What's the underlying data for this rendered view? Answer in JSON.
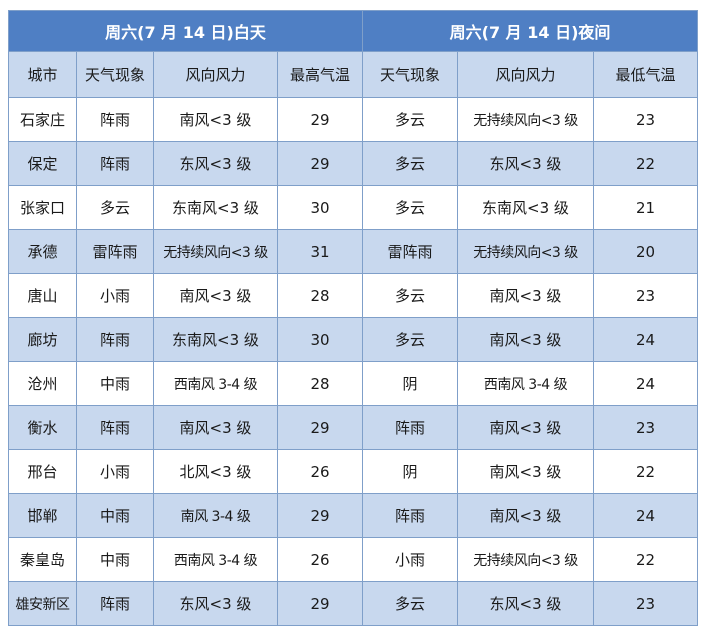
{
  "table": {
    "day_title": "周六(7 月 14 日)白天",
    "night_title": "周六(7 月 14 日)夜间",
    "headers": [
      "城市",
      "天气现象",
      "风向风力",
      "最高气温",
      "天气现象",
      "风向风力",
      "最低气温"
    ],
    "rows": [
      {
        "city": "石家庄",
        "day_weather": "阵雨",
        "day_wind": "南风<3 级",
        "high": "29",
        "night_weather": "多云",
        "night_wind": "无持续风向<3 级",
        "low": "23"
      },
      {
        "city": "保定",
        "day_weather": "阵雨",
        "day_wind": "东风<3 级",
        "high": "29",
        "night_weather": "多云",
        "night_wind": "东风<3 级",
        "low": "22"
      },
      {
        "city": "张家口",
        "day_weather": "多云",
        "day_wind": "东南风<3 级",
        "high": "30",
        "night_weather": "多云",
        "night_wind": "东南风<3 级",
        "low": "21"
      },
      {
        "city": "承德",
        "day_weather": "雷阵雨",
        "day_wind": "无持续风向<3 级",
        "high": "31",
        "night_weather": "雷阵雨",
        "night_wind": "无持续风向<3 级",
        "low": "20"
      },
      {
        "city": "唐山",
        "day_weather": "小雨",
        "day_wind": "南风<3 级",
        "high": "28",
        "night_weather": "多云",
        "night_wind": "南风<3 级",
        "low": "23"
      },
      {
        "city": "廊坊",
        "day_weather": "阵雨",
        "day_wind": "东南风<3 级",
        "high": "30",
        "night_weather": "多云",
        "night_wind": "南风<3 级",
        "low": "24"
      },
      {
        "city": "沧州",
        "day_weather": "中雨",
        "day_wind": "西南风 3-4 级",
        "high": "28",
        "night_weather": "阴",
        "night_wind": "西南风 3-4 级",
        "low": "24"
      },
      {
        "city": "衡水",
        "day_weather": "阵雨",
        "day_wind": "南风<3 级",
        "high": "29",
        "night_weather": "阵雨",
        "night_wind": "南风<3 级",
        "low": "23"
      },
      {
        "city": "邢台",
        "day_weather": "小雨",
        "day_wind": "北风<3 级",
        "high": "26",
        "night_weather": "阴",
        "night_wind": "南风<3 级",
        "low": "22"
      },
      {
        "city": "邯郸",
        "day_weather": "中雨",
        "day_wind": "南风 3-4 级",
        "high": "29",
        "night_weather": "阵雨",
        "night_wind": "南风<3 级",
        "low": "24"
      },
      {
        "city": "秦皇岛",
        "day_weather": "中雨",
        "day_wind": "西南风 3-4 级",
        "high": "26",
        "night_weather": "小雨",
        "night_wind": "无持续风向<3 级",
        "low": "22"
      },
      {
        "city": "雄安新区",
        "day_weather": "阵雨",
        "day_wind": "东风<3 级",
        "high": "29",
        "night_weather": "多云",
        "night_wind": "东风<3 级",
        "low": "23"
      }
    ]
  }
}
